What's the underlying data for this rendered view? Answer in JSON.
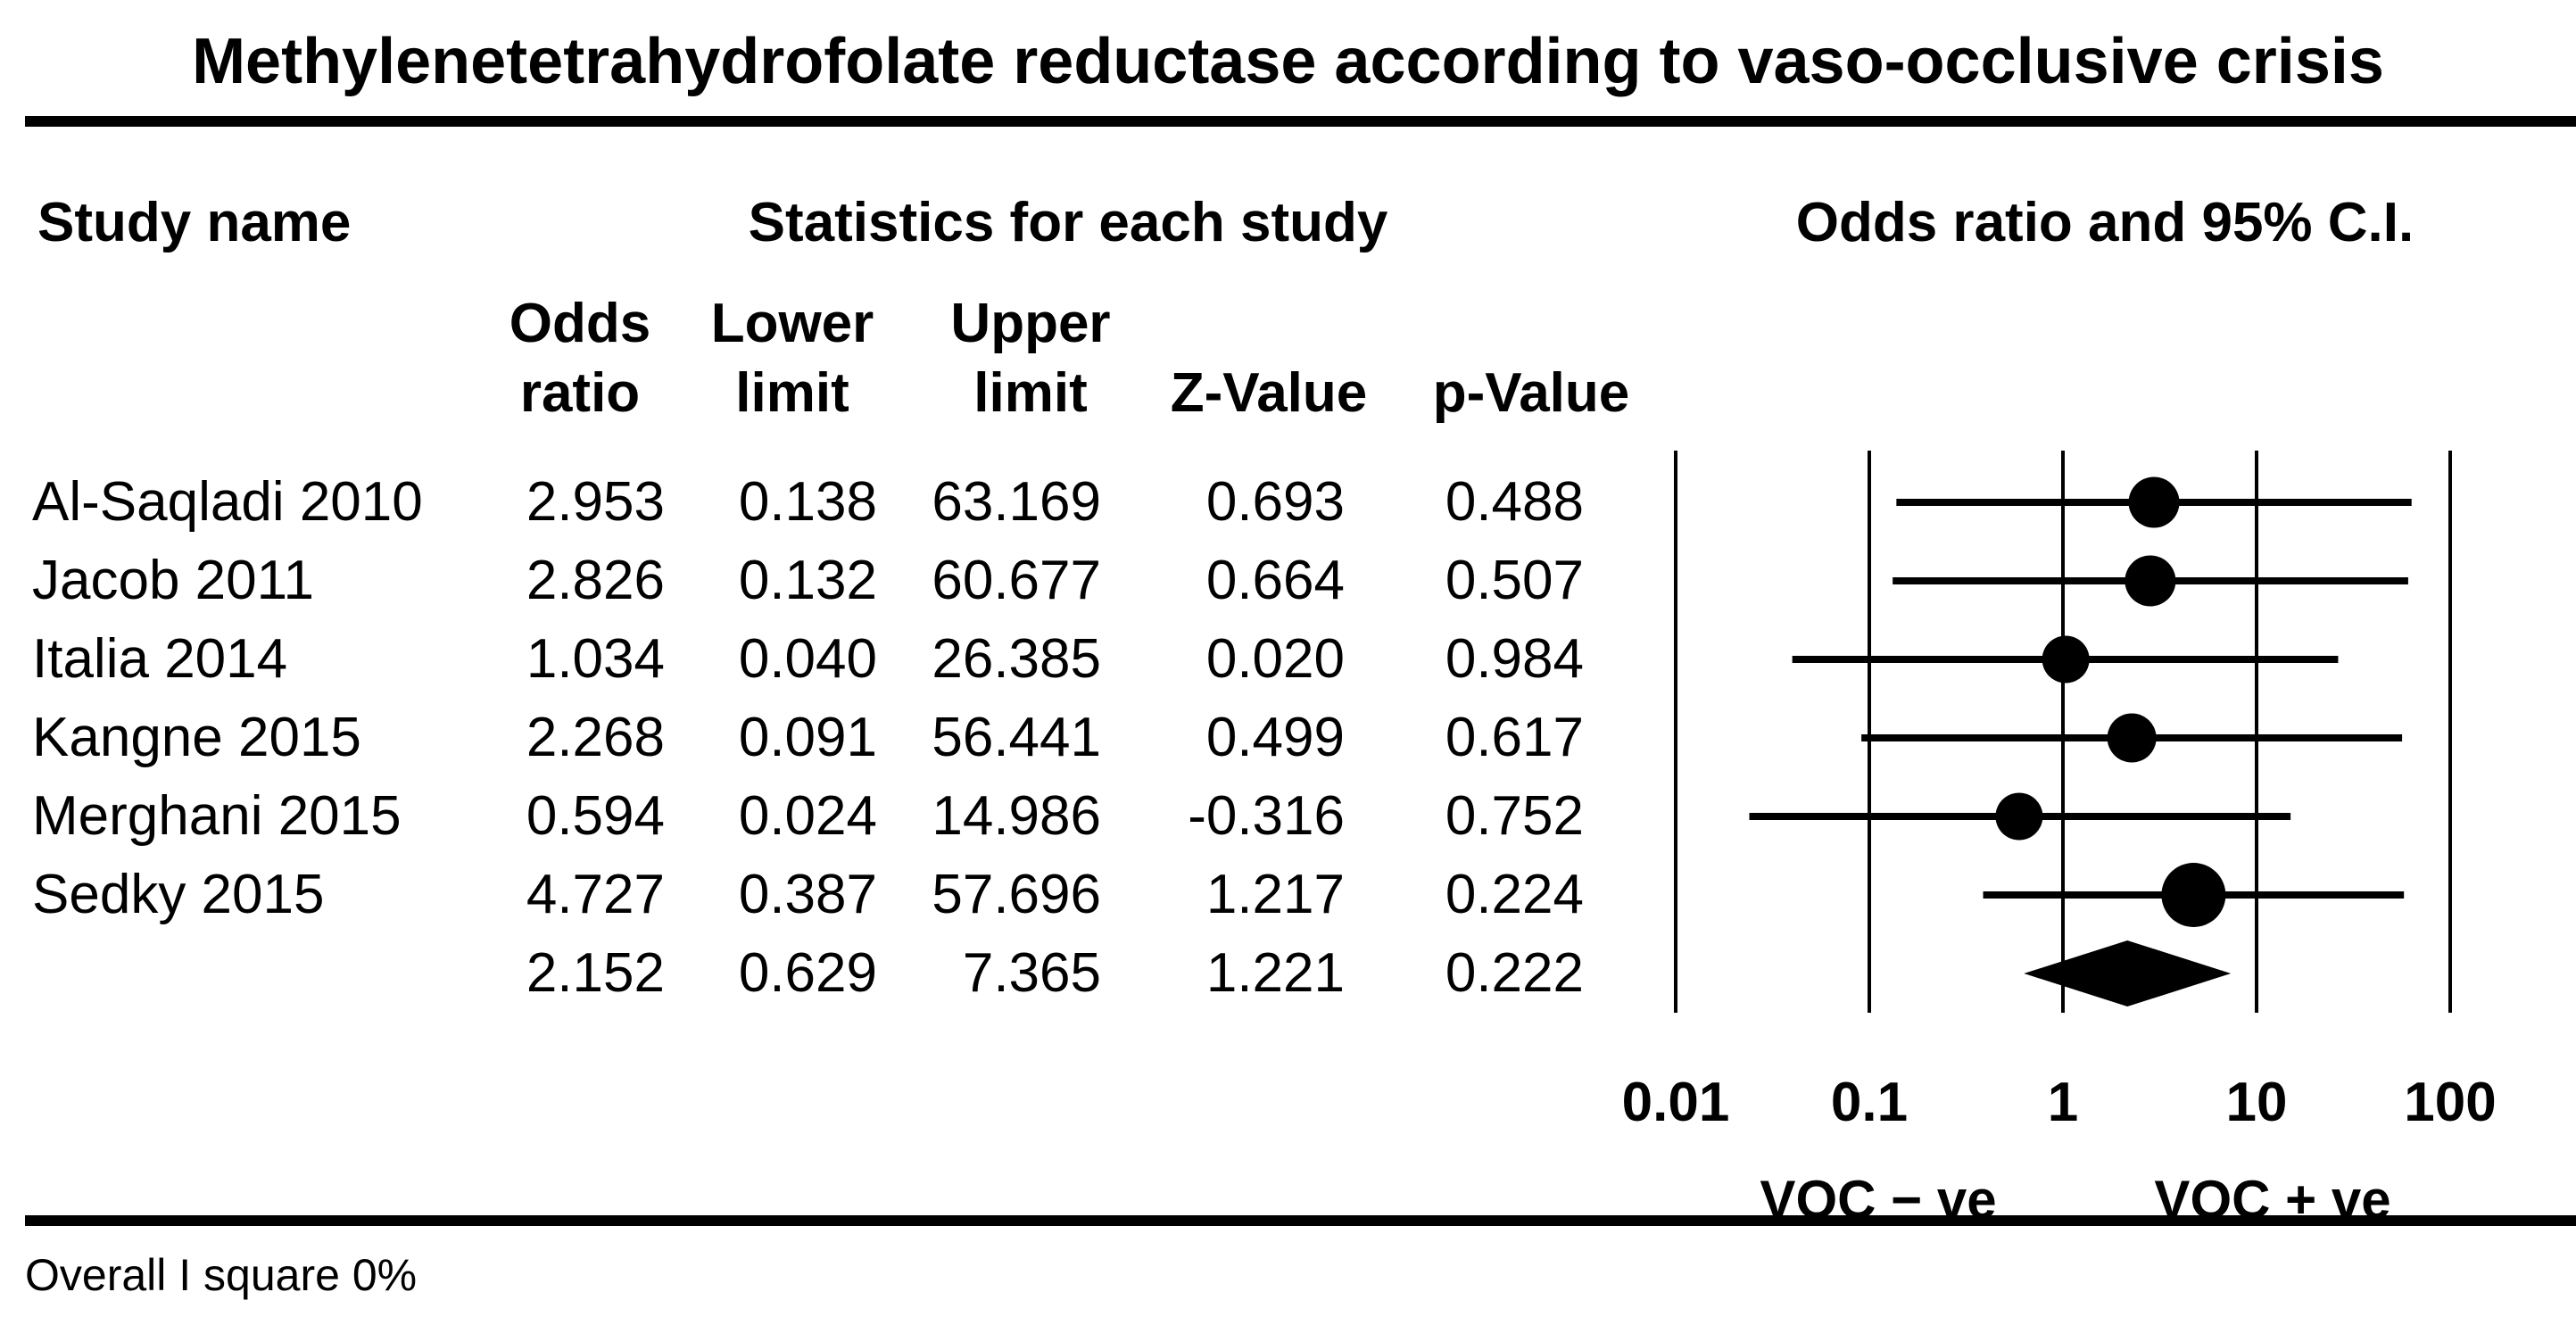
{
  "title": "Methylenetetrahydrofolate reductase according to vaso-occlusive crisis",
  "header": {
    "study_col": "Study name",
    "stats_group": "Statistics for each study",
    "plot_group": "Odds ratio and 95% C.I."
  },
  "columns": [
    {
      "line1": "Odds",
      "line2": "ratio"
    },
    {
      "line1": "Lower",
      "line2": "limit"
    },
    {
      "line1": "Upper",
      "line2": "limit"
    },
    {
      "line1": "",
      "line2": "Z-Value"
    },
    {
      "line1": "",
      "line2": "p-Value"
    }
  ],
  "axis": {
    "tick_labels": [
      "0.01",
      "0.1",
      "1",
      "10",
      "100"
    ],
    "left_label": "VOC − ve",
    "right_label": "VOC + ve"
  },
  "footer": "Overall I square 0%",
  "colors": {
    "ink": "#000000",
    "background": "#ffffff"
  },
  "chart_data": {
    "type": "forest",
    "x_scale": "log10",
    "x_ticks": [
      0.01,
      0.1,
      1,
      10,
      100
    ],
    "xlim": [
      0.01,
      100
    ],
    "grid": "vertical-log-decades",
    "columns": [
      "Odds ratio",
      "Lower limit",
      "Upper limit",
      "Z-Value",
      "p-Value"
    ],
    "studies": [
      {
        "name": "Al-Saqladi 2010",
        "odds_ratio": 2.953,
        "lower_limit": 0.138,
        "upper_limit": 63.169,
        "z_value": 0.693,
        "p_value": 0.488,
        "marker_size": 57
      },
      {
        "name": "Jacob 2011",
        "odds_ratio": 2.826,
        "lower_limit": 0.132,
        "upper_limit": 60.677,
        "z_value": 0.664,
        "p_value": 0.507,
        "marker_size": 57
      },
      {
        "name": "Italia 2014",
        "odds_ratio": 1.034,
        "lower_limit": 0.04,
        "upper_limit": 26.385,
        "z_value": 0.02,
        "p_value": 0.984,
        "marker_size": 53
      },
      {
        "name": "Kangne 2015",
        "odds_ratio": 2.268,
        "lower_limit": 0.091,
        "upper_limit": 56.441,
        "z_value": 0.499,
        "p_value": 0.617,
        "marker_size": 55
      },
      {
        "name": "Merghani 2015",
        "odds_ratio": 0.594,
        "lower_limit": 0.024,
        "upper_limit": 14.986,
        "z_value": -0.316,
        "p_value": 0.752,
        "marker_size": 53
      },
      {
        "name": "Sedky 2015",
        "odds_ratio": 4.727,
        "lower_limit": 0.387,
        "upper_limit": 57.696,
        "z_value": 1.217,
        "p_value": 0.224,
        "marker_size": 72
      }
    ],
    "overall": {
      "odds_ratio": 2.152,
      "lower_limit": 0.629,
      "upper_limit": 7.365,
      "z_value": 1.221,
      "p_value": 0.222,
      "shape": "diamond"
    },
    "xlabel_left": "VOC − ve",
    "xlabel_right": "VOC + ve",
    "heterogeneity_note": "Overall I square 0%"
  }
}
